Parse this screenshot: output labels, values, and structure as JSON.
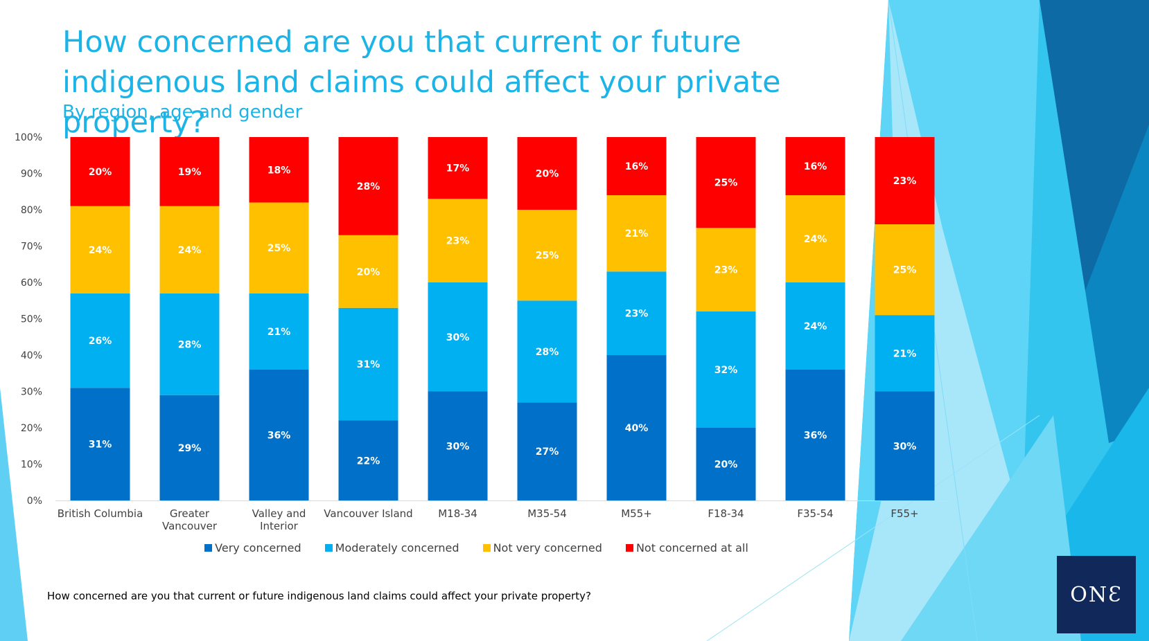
{
  "title": "How concerned are you that current or future indigenous land claims could affect your private property?",
  "subtitle": "By region, age and gender",
  "footnote": "How concerned are you that current or future indigenous land claims could affect your private property?",
  "logo_text": "ONƐ",
  "colors": {
    "very": "#0070c8",
    "moderately": "#00b0f0",
    "not_very": "#ffc000",
    "not_at_all": "#ff0000",
    "title": "#1cb3e6",
    "logo_bg": "#10285a"
  },
  "chart_data": {
    "type": "bar",
    "stacked": true,
    "title": "How concerned are you that current or future indigenous land claims could affect your private property?",
    "subtitle": "By region, age and gender",
    "categories": [
      [
        "British Columbia"
      ],
      [
        "Greater",
        "Vancouver"
      ],
      [
        "Valley and",
        "Interior"
      ],
      [
        "Vancouver Island"
      ],
      [
        "M18-34"
      ],
      [
        "M35-54"
      ],
      [
        "M55+"
      ],
      [
        "F18-34"
      ],
      [
        "F35-54"
      ],
      [
        "F55+"
      ]
    ],
    "series": [
      {
        "name": "Very concerned",
        "color": "#0070c8",
        "values": [
          31,
          29,
          36,
          22,
          30,
          27,
          40,
          20,
          36,
          30
        ],
        "labels": [
          "31%",
          "29%",
          "36%",
          "22%",
          "30%",
          "27%",
          "40%",
          "20%",
          "36%",
          "30%"
        ]
      },
      {
        "name": "Moderately concerned",
        "color": "#00b0f0",
        "values": [
          26,
          28,
          21,
          31,
          30,
          28,
          23,
          32,
          24,
          21
        ],
        "labels": [
          "26%",
          "28%",
          "21%",
          "31%",
          "30%",
          "28%",
          "23%",
          "32%",
          "24%",
          "21%"
        ]
      },
      {
        "name": "Not very concerned",
        "color": "#ffc000",
        "values": [
          24,
          24,
          25,
          20,
          23,
          25,
          21,
          23,
          24,
          25
        ],
        "labels": [
          "24%",
          "24%",
          "25%",
          "20%",
          "23%",
          "25%",
          "21%",
          "23%",
          "24%",
          "25%"
        ]
      },
      {
        "name": "Not concerned at all",
        "color": "#ff0000",
        "values": [
          20,
          19,
          18,
          28,
          17,
          20,
          16,
          25,
          16,
          23
        ],
        "labels": [
          "20%",
          "19%",
          "18%",
          "28%",
          "17%",
          "20%",
          "16%",
          "25%",
          "16%",
          "23%"
        ]
      }
    ],
    "y_ticks": [
      "0%",
      "10%",
      "20%",
      "30%",
      "40%",
      "50%",
      "60%",
      "70%",
      "80%",
      "90%",
      "100%"
    ],
    "ylim": [
      0,
      100
    ],
    "legend_position": "bottom",
    "grid": false
  }
}
